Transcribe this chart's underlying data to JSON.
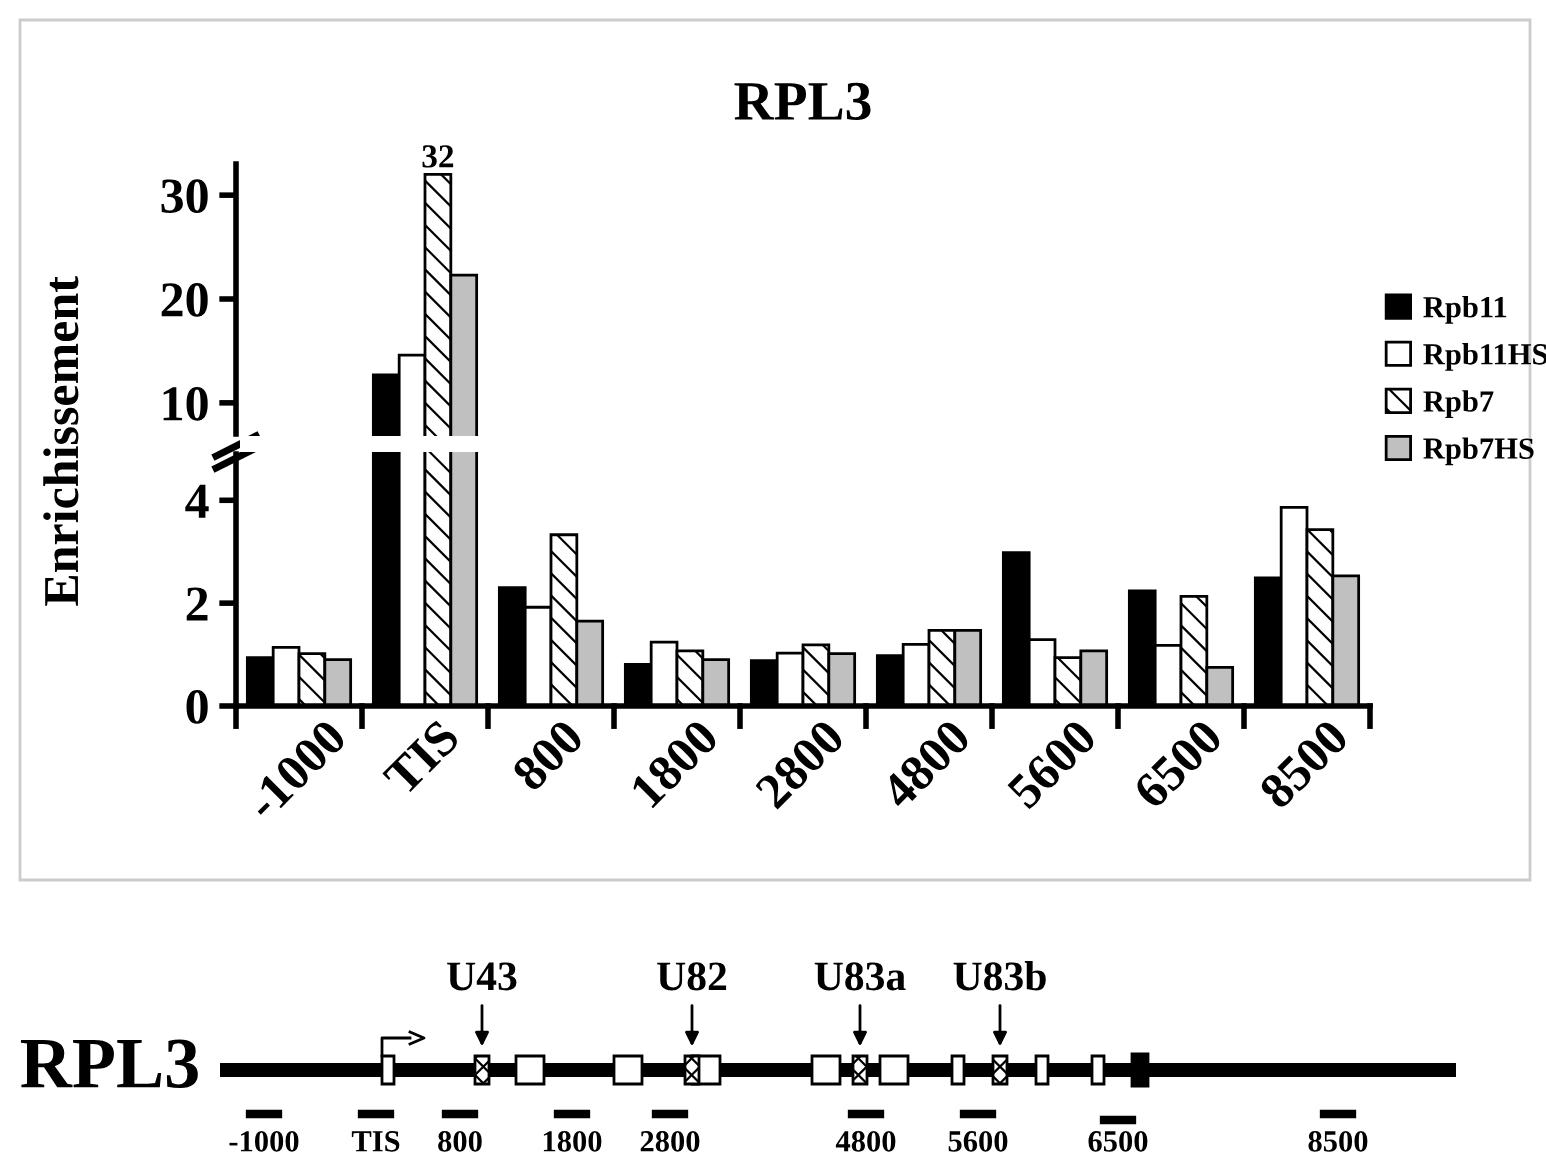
{
  "chart_data": [
    {
      "type": "bar",
      "title": "RPL3",
      "categories": [
        null,
        null,
        null,
        null,
        null,
        null,
        null,
        null,
        null
      ],
      "series": [
        {
          "name": "Rpb11",
          "color": "#000000",
          "values": [
            null,
            12.7,
            null,
            null,
            null,
            null,
            null,
            null,
            null
          ]
        },
        {
          "name": "Rpb11HS",
          "color": "#ffffff",
          "values": [
            null,
            14.6,
            null,
            null,
            null,
            null,
            null,
            null,
            null
          ]
        },
        {
          "name": "Rpb7",
          "color": "#000000",
          "values": [
            null,
            32,
            null,
            null,
            null,
            null,
            null,
            null,
            null
          ],
          "value_labels": [
            null,
            "32",
            null,
            null,
            null,
            null,
            null,
            null,
            null
          ]
        },
        {
          "name": "Rpb7HS",
          "color": "#c0c0c0",
          "values": [
            null,
            22.3,
            null,
            null,
            null,
            null,
            null,
            null,
            null
          ]
        }
      ],
      "ylim": [
        7,
        33
      ],
      "yticks": [
        10,
        20,
        30
      ],
      "tick_labels": "y",
      "grid": false,
      "legend": "right"
    },
    {
      "type": "bar",
      "ylabel": "Enrichissement",
      "categories": [
        "-1000",
        "TIS",
        "800",
        "1800",
        "2800",
        "4800",
        "5600",
        "6500",
        "8500"
      ],
      "series": [
        {
          "color": "#000000",
          "values": [
            0.94,
            null,
            2.3,
            0.81,
            0.88,
            0.98,
            2.98,
            2.24,
            2.49
          ]
        },
        {
          "color": "#ffffff",
          "values": [
            1.14,
            null,
            1.92,
            1.24,
            1.03,
            1.2,
            1.29,
            1.18,
            3.86
          ]
        },
        {
          "color": "#000000",
          "values": [
            1.02,
            null,
            3.33,
            1.07,
            1.19,
            1.47,
            0.94,
            2.13,
            3.43
          ]
        },
        {
          "color": "#c0c0c0",
          "values": [
            0.9,
            null,
            1.65,
            0.9,
            1.02,
            1.47,
            1.07,
            0.75,
            2.53
          ]
        }
      ],
      "ylim": [
        0,
        4.9
      ],
      "yticks": [
        0,
        2,
        4
      ],
      "grid": false,
      "legend": false,
      "annotations": [
        "RPL3",
        "U43",
        "U82",
        "U83a",
        "U83b",
        "-1000",
        "TIS",
        "800",
        "1800",
        "2800",
        "4800",
        "5600",
        "6500",
        "8500"
      ]
    }
  ]
}
